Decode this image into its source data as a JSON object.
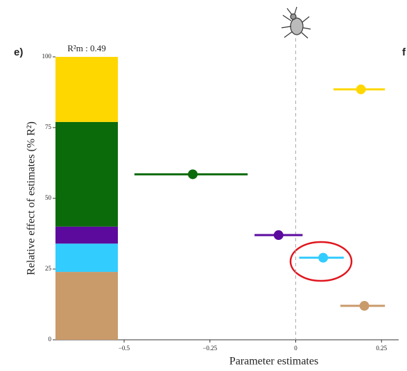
{
  "chart_data": {
    "type": "forest",
    "panel_label": "e)",
    "next_panel_label": "f",
    "annotation": "R²m : 0.49",
    "ylabel": "Relative effect of estimates (% R²)",
    "xlabel": "Parameter estimates",
    "ylim": [
      0,
      100
    ],
    "yticks": [
      0,
      25,
      50,
      75,
      100
    ],
    "xlim": [
      -0.7,
      0.3
    ],
    "xticks": [
      {
        "value": -0.5,
        "label": "−0.5"
      },
      {
        "value": -0.25,
        "label": "−0.25"
      },
      0,
      0.25
    ],
    "series": [
      {
        "color": "#c99a6a",
        "share": 24,
        "estimate": 0.2,
        "ci": [
          0.13,
          0.26
        ]
      },
      {
        "color": "#33ccff",
        "share": 10,
        "estimate": 0.08,
        "ci": [
          0.01,
          0.14
        ]
      },
      {
        "color": "#5c0a9e",
        "share": 6,
        "estimate": -0.05,
        "ci": [
          -0.12,
          0.02
        ]
      },
      {
        "color": "#0b6b0b",
        "share": 37,
        "estimate": -0.3,
        "ci": [
          -0.47,
          -0.14
        ]
      },
      {
        "color": "#ffd700",
        "share": 23,
        "estimate": 0.19,
        "ci": [
          0.11,
          0.26
        ]
      }
    ]
  }
}
